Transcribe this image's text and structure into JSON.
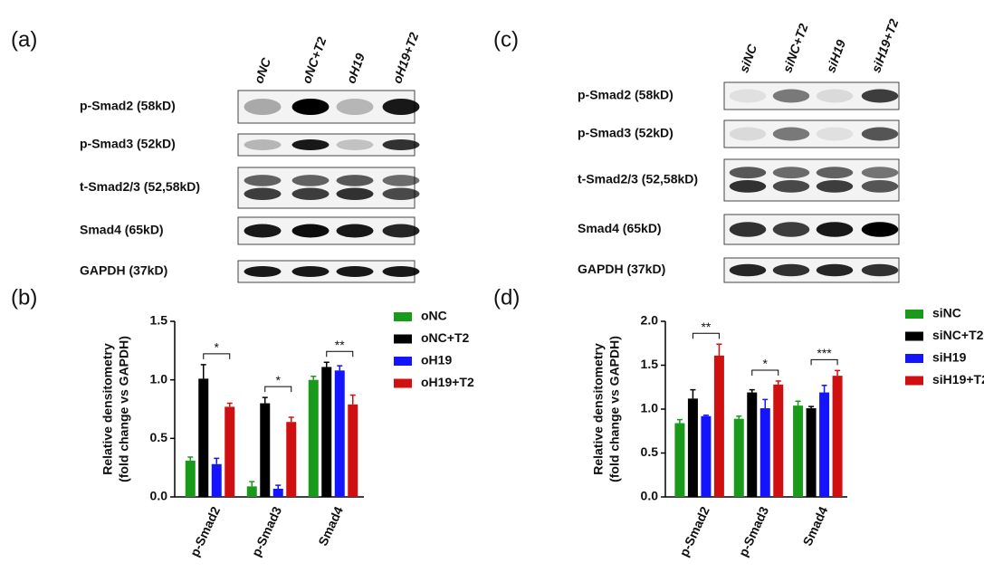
{
  "panels": {
    "a": {
      "label": "(a)",
      "lanes": [
        "oNC",
        "oNC+T2",
        "oH19",
        "oH19+T2"
      ],
      "rows": [
        "p-Smad2 (58kD)",
        "p-Smad3 (52kD)",
        "t-Smad2/3 (52,58kD)",
        "Smad4 (65kD)",
        "GAPDH (37kD)"
      ]
    },
    "b": {
      "label": "(b)"
    },
    "c": {
      "label": "(c)",
      "lanes": [
        "siNC",
        "siNC+T2",
        "siH19",
        "siH19+T2"
      ],
      "rows": [
        "p-Smad2 (58kD)",
        "p-Smad3 (52kD)",
        "t-Smad2/3 (52,58kD)",
        "Smad4 (65kD)",
        "GAPDH (37kD)"
      ]
    },
    "d": {
      "label": "(d)"
    }
  },
  "chart_data": [
    {
      "type": "bar",
      "ylabel": [
        "Relative densitometry",
        "(fold change vs GAPDH)"
      ],
      "categories": [
        "p-Smad2",
        "p-Smad3",
        "Smad4"
      ],
      "series": [
        {
          "name": "oNC",
          "color": "#1a9a1a",
          "values": [
            0.31,
            0.09,
            1.0
          ],
          "errors": [
            0.03,
            0.04,
            0.03
          ]
        },
        {
          "name": "oNC+T2",
          "color": "#000000",
          "values": [
            1.01,
            0.8,
            1.11
          ],
          "errors": [
            0.12,
            0.05,
            0.04
          ]
        },
        {
          "name": "oH19",
          "color": "#1414ff",
          "values": [
            0.28,
            0.07,
            1.08
          ],
          "errors": [
            0.05,
            0.03,
            0.04
          ]
        },
        {
          "name": "oH19+T2",
          "color": "#d01010",
          "values": [
            0.77,
            0.64,
            0.79
          ],
          "errors": [
            0.03,
            0.04,
            0.08
          ]
        }
      ],
      "annotations": [
        "*",
        "*",
        "**"
      ],
      "ylim": [
        0,
        1.5
      ],
      "yticks": [
        {
          "value": 0,
          "label": "0.0"
        },
        0.5,
        {
          "value": 1,
          "label": "1.0"
        },
        1.5
      ]
    },
    {
      "type": "bar",
      "ylabel": [
        "Relative densitometry",
        "(fold change vs GAPDH)"
      ],
      "categories": [
        "p-Smad2",
        "p-Smad3",
        "Smad4"
      ],
      "series": [
        {
          "name": "siNC",
          "color": "#1a9a1a",
          "values": [
            0.84,
            0.89,
            1.04
          ],
          "errors": [
            0.04,
            0.03,
            0.05
          ]
        },
        {
          "name": "siNC+T2",
          "color": "#000000",
          "values": [
            1.12,
            1.19,
            1.01
          ],
          "errors": [
            0.1,
            0.03,
            0.02
          ]
        },
        {
          "name": "siH19",
          "color": "#1414ff",
          "values": [
            0.92,
            1.01,
            1.19
          ],
          "errors": [
            0.01,
            0.1,
            0.08
          ]
        },
        {
          "name": "siH19+T2",
          "color": "#d01010",
          "values": [
            1.61,
            1.28,
            1.38
          ],
          "errors": [
            0.13,
            0.04,
            0.06
          ]
        }
      ],
      "annotations": [
        "**",
        "*",
        "***"
      ],
      "ylim": [
        0,
        2
      ],
      "yticks": [
        {
          "value": 0,
          "label": "0.0"
        },
        0.5,
        {
          "value": 1,
          "label": "1.0"
        },
        1.5,
        {
          "value": 2,
          "label": "2.0"
        }
      ]
    }
  ]
}
